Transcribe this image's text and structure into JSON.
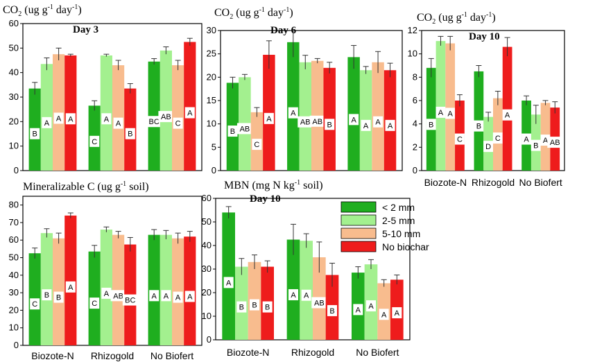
{
  "colors": {
    "lt2": "#1fae1f",
    "s2_5": "#a3f08f",
    "s5_10": "#f8bc8e",
    "nobiochar": "#ee1c1c"
  },
  "legend": {
    "items": [
      "< 2 mm",
      "2-5 mm",
      "5-10 mm",
      "No biochar"
    ]
  },
  "chart_data": [
    {
      "type": "bar",
      "id": "co2_day3",
      "ylabel": "CO",
      "ylabel_sub": "2",
      "ylabel_unit": " (ug g",
      "ylabel_sup1": "-1",
      "ylabel_mid": " day",
      "ylabel_sup2": "-1",
      "ylabel_end": ")",
      "title": "Day 3",
      "categories": [
        "Biozote-N",
        "Rhizogold",
        "No Biofert"
      ],
      "show_categories": false,
      "ylim": [
        0,
        60
      ],
      "yticks": [
        0,
        10,
        20,
        30,
        40,
        50,
        60
      ],
      "series": [
        {
          "name": "< 2 mm",
          "values": [
            33.5,
            26.5,
            44.5
          ],
          "errors": [
            2.5,
            2.0,
            1.2
          ],
          "letters": [
            "B",
            "C",
            "BC"
          ]
        },
        {
          "name": "2-5 mm",
          "values": [
            43.5,
            47.0,
            49.0
          ],
          "errors": [
            2.5,
            0.5,
            1.5
          ],
          "letters": [
            "A",
            "A",
            "AB"
          ]
        },
        {
          "name": "5-10 mm",
          "values": [
            47.5,
            43.0,
            43.0
          ],
          "errors": [
            2.5,
            2.0,
            2.0
          ],
          "letters": [
            "A",
            "A",
            "C"
          ]
        },
        {
          "name": "No biochar",
          "values": [
            47.0,
            33.5,
            52.5
          ],
          "errors": [
            0.5,
            2.0,
            1.5
          ],
          "letters": [
            "A",
            "B",
            "A"
          ]
        }
      ]
    },
    {
      "type": "bar",
      "id": "co2_day6",
      "ylabel": "CO",
      "ylabel_sub": "2",
      "ylabel_unit": " (ug g",
      "ylabel_sup1": "-1",
      "ylabel_mid": " day",
      "ylabel_sup2": "-1",
      "ylabel_end": ")",
      "title": "Day 6",
      "categories": [
        "Biozote-N",
        "Rhizogold",
        "No Biofert"
      ],
      "show_categories": false,
      "ylim": [
        0,
        30
      ],
      "yticks": [
        0,
        5,
        10,
        15,
        20,
        25,
        30
      ],
      "series": [
        {
          "name": "< 2 mm",
          "values": [
            18.8,
            27.5,
            24.3
          ],
          "errors": [
            1.2,
            3.2,
            2.5
          ],
          "letters": [
            "B",
            "A",
            "A"
          ]
        },
        {
          "name": "2-5 mm",
          "values": [
            20.0,
            23.2,
            21.5
          ],
          "errors": [
            0.6,
            1.5,
            0.8
          ],
          "letters": [
            "AB",
            "AB",
            "A"
          ]
        },
        {
          "name": "5-10 mm",
          "values": [
            12.5,
            23.5,
            23.2
          ],
          "errors": [
            1.0,
            0.5,
            2.3
          ],
          "letters": [
            "C",
            "AB",
            "A"
          ]
        },
        {
          "name": "No biochar",
          "values": [
            24.8,
            22.0,
            21.5
          ],
          "errors": [
            3.0,
            1.2,
            1.5
          ],
          "letters": [
            "A",
            "B",
            "A"
          ]
        }
      ]
    },
    {
      "type": "bar",
      "id": "co2_day10",
      "ylabel": "CO",
      "ylabel_sub": "2",
      "ylabel_unit": " (ug g",
      "ylabel_sup1": "-1",
      "ylabel_mid": " day",
      "ylabel_sup2": "-1",
      "ylabel_end": ")",
      "title": "Day 10",
      "categories": [
        "Biozote-N",
        "Rhizogold",
        "No Biofert"
      ],
      "show_categories": true,
      "ylim": [
        0,
        12
      ],
      "yticks": [
        0,
        2,
        4,
        6,
        8,
        10,
        12
      ],
      "series": [
        {
          "name": "< 2 mm",
          "values": [
            8.8,
            8.5,
            6.0
          ],
          "errors": [
            0.8,
            0.5,
            0.4
          ],
          "letters": [
            "B",
            "B",
            "A"
          ]
        },
        {
          "name": "2-5 mm",
          "values": [
            11.1,
            4.6,
            4.8
          ],
          "errors": [
            0.4,
            0.4,
            0.8
          ],
          "letters": [
            "A",
            "D",
            "B"
          ]
        },
        {
          "name": "5-10 mm",
          "values": [
            10.9,
            6.2,
            5.8
          ],
          "errors": [
            0.6,
            0.6,
            0.2
          ],
          "letters": [
            "A",
            "C",
            "A"
          ]
        },
        {
          "name": "No biochar",
          "values": [
            6.0,
            10.6,
            5.4
          ],
          "errors": [
            0.5,
            0.8,
            0.5
          ],
          "letters": [
            "C",
            "A",
            "AB"
          ]
        }
      ]
    },
    {
      "type": "bar",
      "id": "mineralizable_c",
      "ylabel": "Mineralizable C (ug g",
      "ylabel_sup1": "-1",
      "ylabel_end": " soil)",
      "title": "",
      "categories": [
        "Biozote-N",
        "Rhizogold",
        "No Biofert"
      ],
      "show_categories": true,
      "ylim": [
        0,
        85
      ],
      "yticks": [
        0,
        10,
        20,
        30,
        40,
        50,
        60,
        70,
        80
      ],
      "series": [
        {
          "name": "< 2 mm",
          "values": [
            52.5,
            53.5,
            63.0
          ],
          "errors": [
            3.0,
            3.5,
            3.0
          ],
          "letters": [
            "C",
            "C",
            "A"
          ]
        },
        {
          "name": "2-5 mm",
          "values": [
            64.0,
            66.0,
            63.0
          ],
          "errors": [
            2.5,
            1.5,
            2.5
          ],
          "letters": [
            "B",
            "A",
            "A"
          ]
        },
        {
          "name": "5-10 mm",
          "values": [
            61.0,
            63.0,
            61.0
          ],
          "errors": [
            3.0,
            2.0,
            3.0
          ],
          "letters": [
            "B",
            "AB",
            "A"
          ]
        },
        {
          "name": "No biochar",
          "values": [
            74.0,
            57.5,
            62.0
          ],
          "errors": [
            1.5,
            4.0,
            3.0
          ],
          "letters": [
            "A",
            "BC",
            "A"
          ]
        }
      ]
    },
    {
      "type": "bar",
      "id": "mbn_day10",
      "ylabel": "MBN (mg N kg",
      "ylabel_sup1": "-1",
      "ylabel_end": " soil)",
      "title": "Day 10",
      "categories": [
        "Biozote-N",
        "Rhizogold",
        "No Biofert"
      ],
      "show_categories": true,
      "ylim": [
        0,
        60
      ],
      "yticks": [
        0,
        10,
        20,
        30,
        40,
        50,
        60
      ],
      "series": [
        {
          "name": "< 2 mm",
          "values": [
            54.0,
            42.5,
            28.5
          ],
          "errors": [
            2.5,
            6.5,
            2.5
          ],
          "letters": [
            "A",
            "A",
            "A"
          ]
        },
        {
          "name": "2-5 mm",
          "values": [
            31.0,
            42.0,
            32.0
          ],
          "errors": [
            3.5,
            3.0,
            2.0
          ],
          "letters": [
            "B",
            "A",
            "A"
          ]
        },
        {
          "name": "5-10 mm",
          "values": [
            33.0,
            35.0,
            24.0
          ],
          "errors": [
            3.0,
            6.5,
            1.5
          ],
          "letters": [
            "B",
            "AB",
            "A"
          ]
        },
        {
          "name": "No biochar",
          "values": [
            31.0,
            27.5,
            25.5
          ],
          "errors": [
            2.5,
            5.0,
            2.0
          ],
          "letters": [
            "B",
            "B",
            "A"
          ]
        }
      ]
    }
  ]
}
